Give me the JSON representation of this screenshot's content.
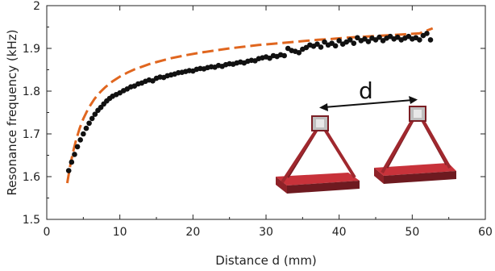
{
  "chart_data": {
    "type": "scatter",
    "title": "",
    "xlabel": "Distance d (mm)",
    "ylabel": "Resonance frequency (kHz)",
    "xlim": [
      0,
      60
    ],
    "ylim": [
      1.5,
      2.0
    ],
    "xticks": [
      "0",
      "10",
      "20",
      "30",
      "40",
      "50",
      "60"
    ],
    "yticks": [
      "1.5",
      "1.6",
      "1.7",
      "1.8",
      "1.9",
      "2"
    ],
    "grid": false,
    "legend": "none",
    "annotation": "d",
    "colors": {
      "points": "#111111",
      "curve": "#E0661F",
      "block": "#A8242A",
      "cube": "#BFBFBF"
    },
    "series": [
      {
        "style": "points",
        "x": [
          3.0,
          3.4,
          3.8,
          4.2,
          4.6,
          5.0,
          5.4,
          5.8,
          6.2,
          6.6,
          7.0,
          7.4,
          7.8,
          8.2,
          8.6,
          9.0,
          9.5,
          10.0,
          10.5,
          11.0,
          11.5,
          12.0,
          12.5,
          13.0,
          13.5,
          14.0,
          14.5,
          15.0,
          15.5,
          16.0,
          16.5,
          17.0,
          17.5,
          18.0,
          18.5,
          19.0,
          19.5,
          20.0,
          20.5,
          21.0,
          21.5,
          22.0,
          22.5,
          23.0,
          23.5,
          24.0,
          24.5,
          25.0,
          25.5,
          26.0,
          26.5,
          27.0,
          27.5,
          28.0,
          28.5,
          29.0,
          29.5,
          30.0,
          30.5,
          31.0,
          31.5,
          32.0,
          32.5,
          33.0,
          33.5,
          34.0,
          34.5,
          35.0,
          35.5,
          36.0,
          36.5,
          37.0,
          37.5,
          38.0,
          38.5,
          39.0,
          39.5,
          40.0,
          40.5,
          41.0,
          41.5,
          42.0,
          42.5,
          43.0,
          43.5,
          44.0,
          44.5,
          45.0,
          45.5,
          46.0,
          46.5,
          47.0,
          47.5,
          48.0,
          48.5,
          49.0,
          49.5,
          50.0,
          50.5,
          51.0,
          51.5,
          52.0,
          52.5
        ],
        "y": [
          1.614,
          1.634,
          1.652,
          1.67,
          1.686,
          1.7,
          1.713,
          1.725,
          1.736,
          1.746,
          1.755,
          1.762,
          1.77,
          1.777,
          1.783,
          1.788,
          1.792,
          1.796,
          1.801,
          1.805,
          1.81,
          1.812,
          1.817,
          1.819,
          1.823,
          1.826,
          1.824,
          1.83,
          1.833,
          1.832,
          1.836,
          1.838,
          1.84,
          1.843,
          1.844,
          1.846,
          1.848,
          1.847,
          1.851,
          1.853,
          1.852,
          1.855,
          1.857,
          1.856,
          1.86,
          1.858,
          1.862,
          1.864,
          1.863,
          1.866,
          1.868,
          1.866,
          1.87,
          1.872,
          1.871,
          1.876,
          1.878,
          1.88,
          1.877,
          1.883,
          1.881,
          1.885,
          1.883,
          1.9,
          1.895,
          1.893,
          1.89,
          1.898,
          1.902,
          1.908,
          1.905,
          1.91,
          1.903,
          1.915,
          1.908,
          1.912,
          1.906,
          1.918,
          1.91,
          1.915,
          1.92,
          1.912,
          1.925,
          1.918,
          1.922,
          1.916,
          1.924,
          1.92,
          1.926,
          1.918,
          1.924,
          1.928,
          1.922,
          1.926,
          1.92,
          1.924,
          1.928,
          1.922,
          1.925,
          1.92,
          1.93,
          1.935,
          1.92
        ]
      },
      {
        "style": "dashed-line",
        "x": [
          2.8,
          3.2,
          3.6,
          4.0,
          4.5,
          5.0,
          5.5,
          6.0,
          6.5,
          7.0,
          7.5,
          8.0,
          9.0,
          10.0,
          11.0,
          12.0,
          13.0,
          14.0,
          15.0,
          17.0,
          19.0,
          21.0,
          23.0,
          25.0,
          27.0,
          29.0,
          31.0,
          33.0,
          35.0,
          37.0,
          39.0,
          41.0,
          43.0,
          45.0,
          47.0,
          49.0,
          51.0,
          52.8
        ],
        "y": [
          1.585,
          1.625,
          1.658,
          1.685,
          1.713,
          1.735,
          1.753,
          1.768,
          1.781,
          1.792,
          1.801,
          1.809,
          1.823,
          1.834,
          1.843,
          1.851,
          1.857,
          1.863,
          1.868,
          1.877,
          1.884,
          1.89,
          1.895,
          1.9,
          1.904,
          1.908,
          1.911,
          1.914,
          1.917,
          1.92,
          1.922,
          1.925,
          1.927,
          1.929,
          1.931,
          1.933,
          1.935,
          1.947
        ]
      }
    ]
  }
}
